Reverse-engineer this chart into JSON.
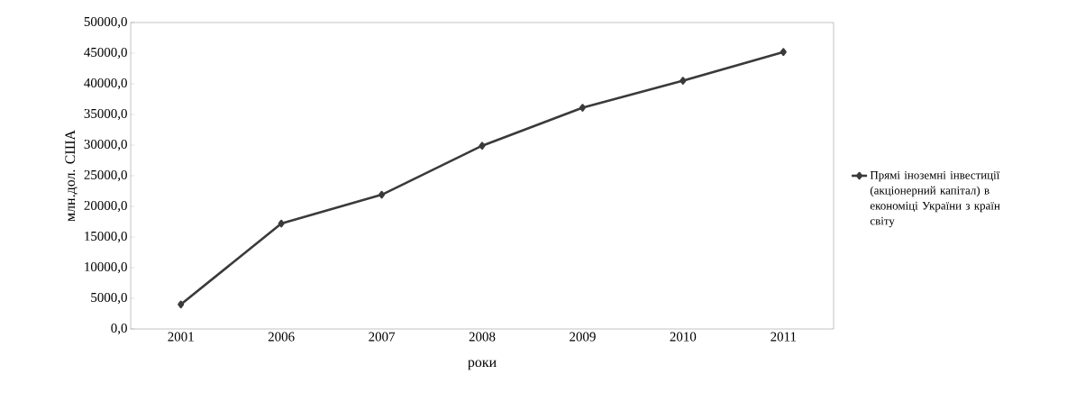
{
  "chart_data": {
    "type": "line",
    "xlabel": "роки",
    "ylabel": "млн.дол. США",
    "categories": [
      "2001",
      "2006",
      "2007",
      "2008",
      "2009",
      "2010",
      "2011"
    ],
    "series": [
      {
        "name": "Прямі іноземні інвестиції (акціонерний капітал) в економіці України з країн світу",
        "color": "#3a3a3a",
        "values": [
          4000,
          17200,
          21900,
          29900,
          36100,
          40500,
          45200
        ]
      }
    ],
    "ylim": [
      0,
      50000
    ],
    "yticks": [
      {
        "value": 0,
        "label": "0,0"
      },
      {
        "value": 5000,
        "label": "5000,0"
      },
      {
        "value": 10000,
        "label": "10000,0"
      },
      {
        "value": 15000,
        "label": "15000,0"
      },
      {
        "value": 20000,
        "label": "20000,0"
      },
      {
        "value": 25000,
        "label": "25000,0"
      },
      {
        "value": 30000,
        "label": "30000,0"
      },
      {
        "value": 35000,
        "label": "35000,0"
      },
      {
        "value": 40000,
        "label": "40000,0"
      },
      {
        "value": 45000,
        "label": "45000,0"
      },
      {
        "value": 50000,
        "label": "50000,0"
      }
    ],
    "legend": "right",
    "marker": "diamond",
    "line_style": "solid",
    "grid": false
  }
}
